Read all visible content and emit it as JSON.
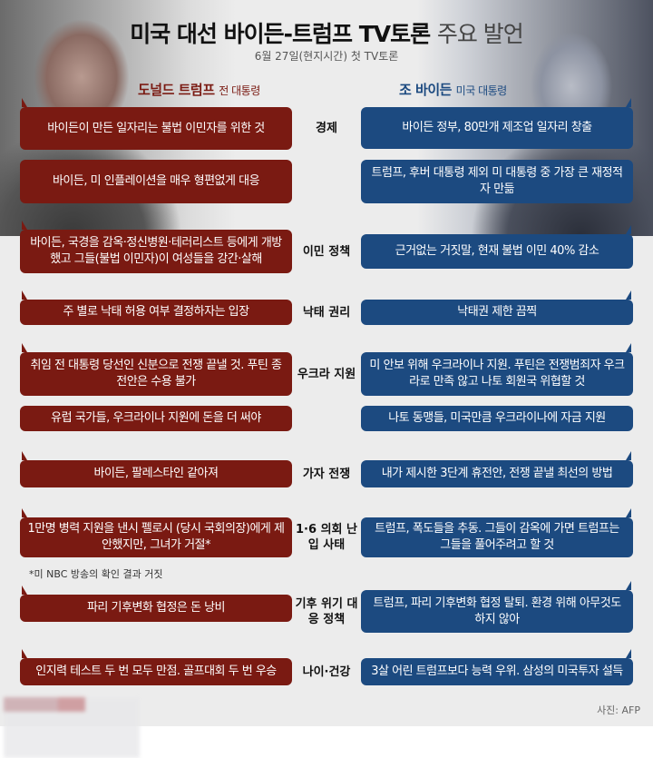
{
  "title": {
    "bold": "미국 대선 바이든-트럼프 TV토론",
    "light": "주요 발언"
  },
  "subtitle": "6월 27일(현지시간) 첫 TV토론",
  "trump": {
    "name": "도널드 트럼프",
    "role": "전 대통령"
  },
  "biden": {
    "name": "조 바이든",
    "role": "미국 대통령"
  },
  "colors": {
    "trump": "#7a1a12",
    "biden": "#1c4a80"
  },
  "topics": [
    {
      "label": "경제",
      "trump": [
        "바이든이 만든 일자리는 불법 이민자를 위한 것",
        "바이든, 미 인플레이션을 매우 형편없게 대응"
      ],
      "biden": [
        "바이든 정부, 80만개 제조업 일자리 창출",
        "트럼프, 후버 대통령 제외 미 대통령 중 가장 큰 재정적자 만듦"
      ]
    },
    {
      "label": "이민 정책",
      "trump": [
        "바이든, 국경을 감옥·정신병원·테러리스트 등에게 개방했고 그들(불법 이민자)이 여성들을 강간·살해"
      ],
      "biden": [
        "근거없는 거짓말, 현재 불법 이민 40% 감소"
      ]
    },
    {
      "label": "낙태 권리",
      "trump": [
        "주 별로 낙태 허용 여부 결정하자는 입장"
      ],
      "biden": [
        "낙태권 제한 끔찍"
      ]
    },
    {
      "label": "우크라 지원",
      "trump": [
        "취임 전 대통령 당선인 신분으로 전쟁 끝낼 것. 푸틴 종전안은 수용 불가",
        "유럽 국가들, 우크라이나 지원에 돈을 더 써야"
      ],
      "biden": [
        "미 안보 위해 우크라이나 지원. 푸틴은 전쟁범죄자 우크라로 만족 않고 나토 회원국 위협할 것",
        "나토 동맹들, 미국만큼 우크라이나에 자금 지원"
      ]
    },
    {
      "label": "가자 전쟁",
      "trump": [
        "바이든, 팔레스타인 같아져"
      ],
      "biden": [
        "내가 제시한 3단계 휴전안, 전쟁 끝낼 최선의 방법"
      ]
    },
    {
      "label": "1·6 의회 난입 사태",
      "trump": [
        "1만명 병력 지원을 낸시 펠로시 (당시 국회의장)에게 제안했지만, 그녀가 거절*"
      ],
      "biden": [
        "트럼프, 폭도들을 추동. 그들이 감옥에 가면 트럼프는 그들을 풀어주려고 할 것"
      ]
    },
    {
      "label": "기후 위기 대응 정책",
      "trump": [
        "파리 기후변화 협정은 돈 낭비"
      ],
      "biden": [
        "트럼프, 파리 기후변화 협정 탈퇴. 환경 위해 아무것도 하지 않아"
      ]
    },
    {
      "label": "나이·건강",
      "trump": [
        "인지력 테스트 두 번 모두 만점. 골프대회 두 번 우승"
      ],
      "biden": [
        "3살 어린 트럼프보다 능력 우위. 삼성의 미국투자 설득"
      ]
    }
  ],
  "footnote": "*미 NBC 방송의 확인 결과 거짓",
  "credit": "사진: AFP"
}
